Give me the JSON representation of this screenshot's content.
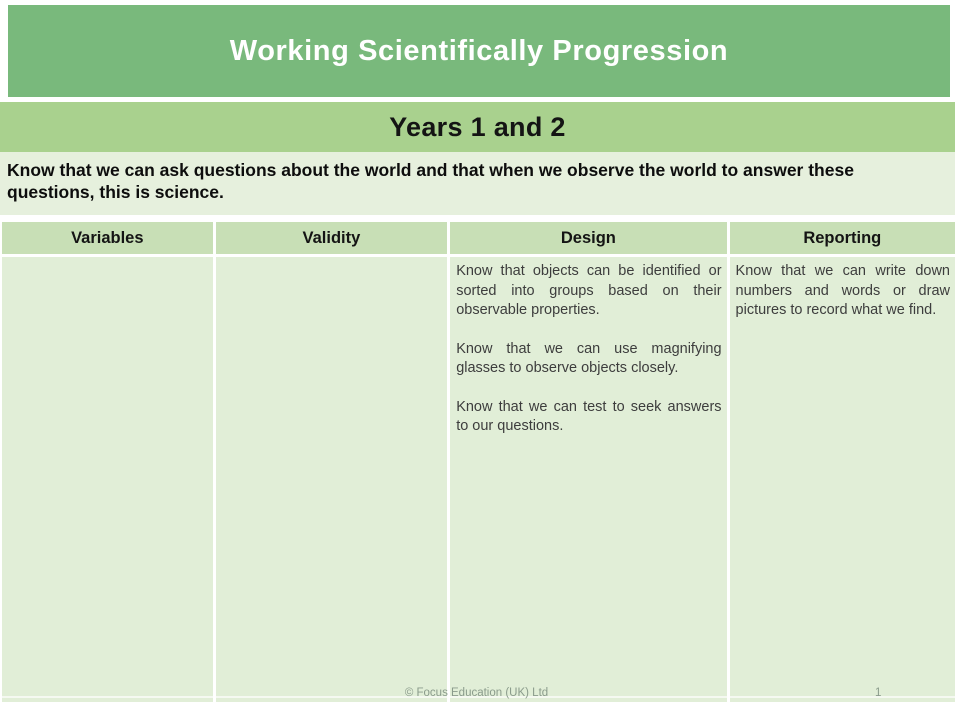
{
  "slide": {
    "title": "Working Scientifically Progression",
    "subtitle": "Years 1 and 2",
    "intro": "Know that we can ask questions about the world and that when we observe the world to answer these questions, this is science.",
    "table": {
      "columns": [
        "Variables",
        "Validity",
        "Design",
        "Reporting"
      ],
      "cells": {
        "variables": [],
        "validity": [],
        "design": [
          "Know that objects can be identified or sorted into groups based on their observable properties.",
          "Know that we can use magnifying glasses to observe objects closely.",
          "Know that we can test to seek answers to our questions."
        ],
        "reporting": [
          "Know that we can write down numbers and words or draw pictures to record what we find."
        ]
      }
    },
    "footer": {
      "copyright": "© Focus Education (UK) Ltd",
      "page_number": "1"
    },
    "colors": {
      "title_band": "#79b97c",
      "subtitle_band": "#a9d18e",
      "intro_band": "#e6f0dd",
      "table_header_row": "#c8dfb6",
      "table_body_cell": "#e1eed7",
      "title_text": "#ffffff",
      "body_text": "#3d3d3d",
      "footer_text": "#8a9b8b"
    }
  }
}
